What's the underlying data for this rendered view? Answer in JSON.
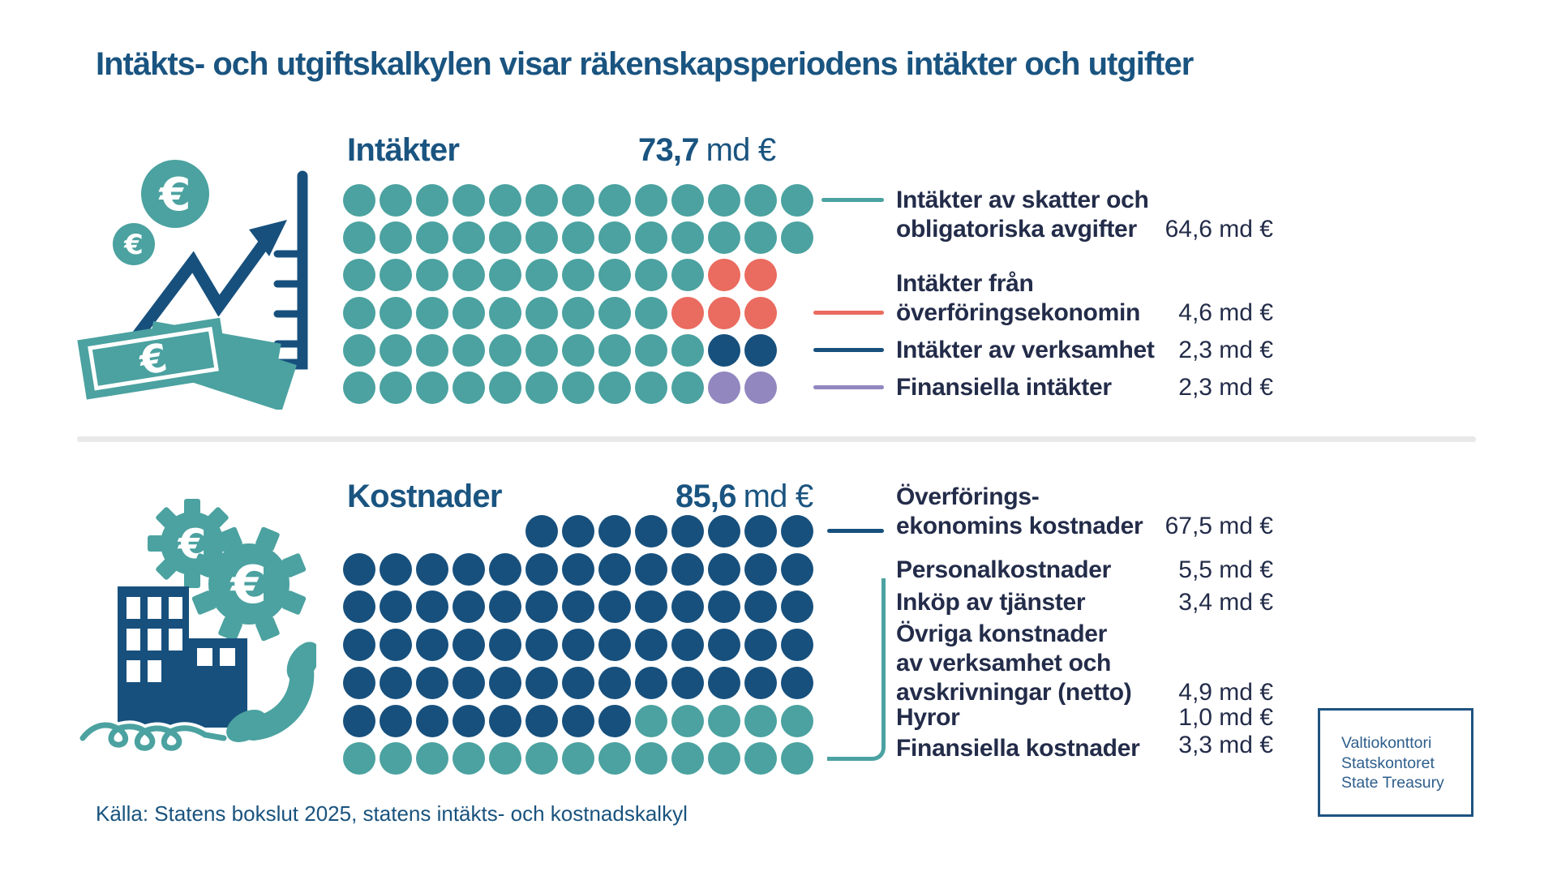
{
  "title": "Intäkts- och utgiftskalkylen visar räkenskapsperiodens intäkter och utgifter",
  "source": "Källa: Statens bokslut 2025, statens intäkts- och kostnadskalkyl",
  "logo": {
    "line1": "Valtiokonttori",
    "line2": "Statskontoret",
    "line3": "State Treasury"
  },
  "colors": {
    "teal": "#4BA2A0",
    "red": "#EA6B5F",
    "navy": "#17507D",
    "purple": "#9287BF",
    "heading_blue": "#1A5480",
    "text_navy": "#232C49",
    "divider_gray": "#E9E9E9"
  },
  "chart_data": [
    {
      "type": "pictogram",
      "section": "income",
      "title": "Intäkter",
      "total_value": "73,7",
      "total_unit": "md €",
      "legend": [
        {
          "label": "Intäkter av skatter och\nobligatoriska avgifter",
          "value": "64,6 md €",
          "value_md_eur": 64.6,
          "color": "teal"
        },
        {
          "label": "Intäkter från\növerföringsekonomin",
          "value": "4,6 md €",
          "value_md_eur": 4.6,
          "color": "red"
        },
        {
          "label": "Intäkter av verksamhet",
          "value": "2,3 md €",
          "value_md_eur": 2.3,
          "color": "navy"
        },
        {
          "label": "Finansiella intäkter",
          "value": "2,3 md €",
          "value_md_eur": 2.3,
          "color": "purple"
        }
      ],
      "rows": [
        {
          "start": 0,
          "segments": [
            [
              "teal",
              13
            ]
          ]
        },
        {
          "start": 0,
          "segments": [
            [
              "teal",
              13
            ]
          ]
        },
        {
          "start": 0,
          "segments": [
            [
              "teal",
              10
            ],
            [
              "red",
              2
            ]
          ]
        },
        {
          "start": 0,
          "segments": [
            [
              "teal",
              9
            ],
            [
              "red",
              3
            ]
          ]
        },
        {
          "start": 0,
          "segments": [
            [
              "teal",
              10
            ],
            [
              "navy",
              2
            ]
          ]
        },
        {
          "start": 0,
          "segments": [
            [
              "teal",
              10
            ],
            [
              "purple",
              2
            ]
          ]
        }
      ]
    },
    {
      "type": "pictogram",
      "section": "costs",
      "title": "Kostnader",
      "total_value": "85,6",
      "total_unit": "md €",
      "legend": [
        {
          "label": "Överförings-\nekonomins kostnader",
          "value": "67,5 md €",
          "value_md_eur": 67.5,
          "color": "navy"
        },
        {
          "label": "Personalkostnader",
          "value": "5,5 md €",
          "value_md_eur": 5.5,
          "color": "teal"
        },
        {
          "label": "Inköp av tjänster",
          "value": "3,4 md €",
          "value_md_eur": 3.4,
          "color": "teal"
        },
        {
          "label": "Övriga konstnader\nav verksamhet och\navskrivningar (netto)",
          "value": "4,9 md €",
          "value_md_eur": 4.9,
          "color": "teal"
        },
        {
          "label": "Hyror",
          "value": "1,0 md €",
          "value_md_eur": 1.0,
          "color": "teal"
        },
        {
          "label": "Finansiella kostnader",
          "value": "3,3 md €",
          "value_md_eur": 3.3,
          "color": "teal"
        }
      ],
      "rows": [
        {
          "start": 5,
          "segments": [
            [
              "navy",
              8
            ]
          ]
        },
        {
          "start": 0,
          "segments": [
            [
              "navy",
              13
            ]
          ]
        },
        {
          "start": 0,
          "segments": [
            [
              "navy",
              13
            ]
          ]
        },
        {
          "start": 0,
          "segments": [
            [
              "navy",
              13
            ]
          ]
        },
        {
          "start": 0,
          "segments": [
            [
              "navy",
              13
            ]
          ]
        },
        {
          "start": 0,
          "segments": [
            [
              "navy",
              8
            ],
            [
              "teal",
              5
            ]
          ]
        },
        {
          "start": 0,
          "segments": [
            [
              "teal",
              13
            ]
          ]
        }
      ]
    }
  ]
}
